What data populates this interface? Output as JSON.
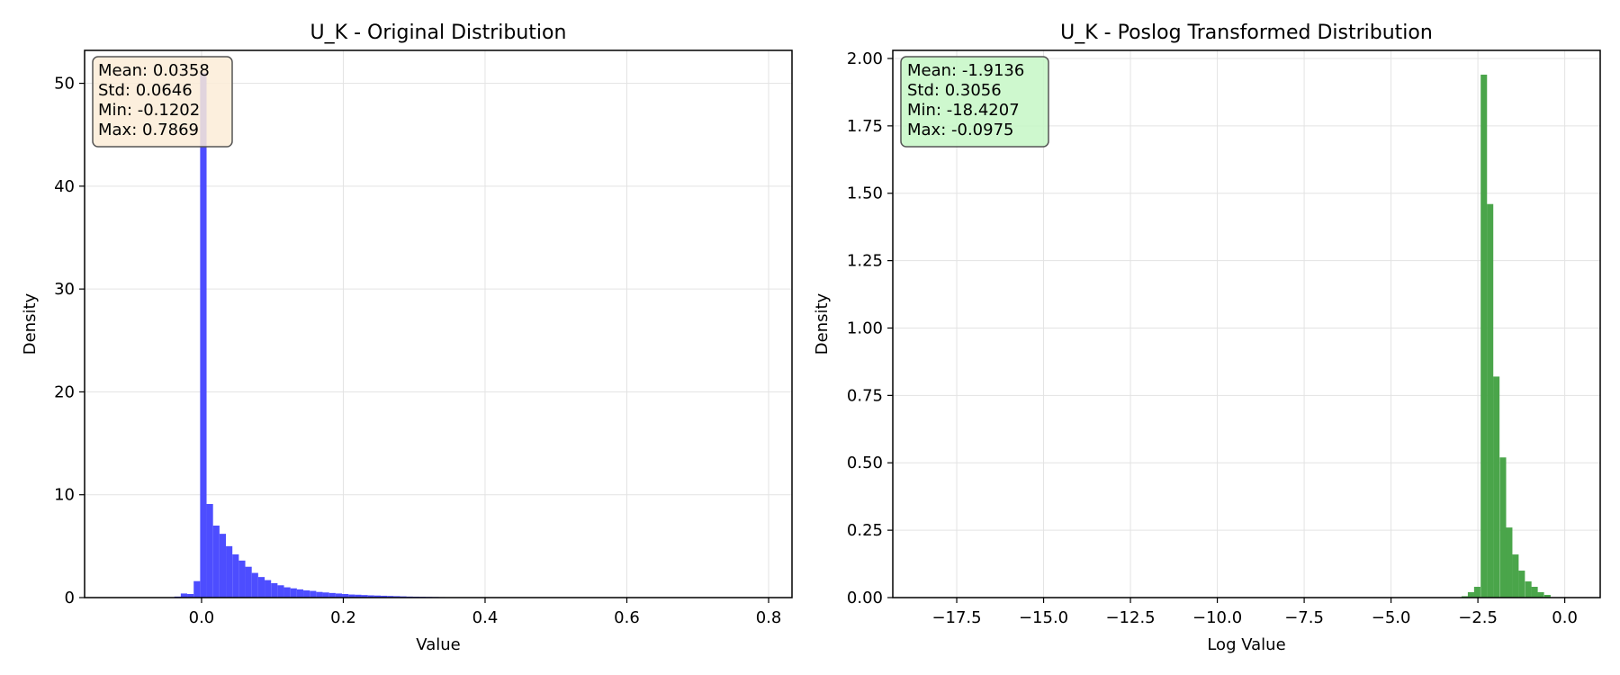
{
  "chart_data": [
    {
      "type": "bar",
      "title": "U_K - Original Distribution",
      "xlabel": "Value",
      "ylabel": "Density",
      "xlim": [
        -0.165,
        0.833
      ],
      "ylim": [
        0,
        53.2
      ],
      "xticks": [
        0.0,
        0.2,
        0.4,
        0.6,
        0.8
      ],
      "xtick_labels": [
        "0.0",
        "0.2",
        "0.4",
        "0.6",
        "0.8"
      ],
      "yticks": [
        0,
        10,
        20,
        30,
        40,
        50
      ],
      "ytick_labels": [
        "0",
        "10",
        "20",
        "30",
        "40",
        "50"
      ],
      "grid": true,
      "bar_color": "#4d4dff",
      "bin_width": 0.00909,
      "bins_x": [
        -0.0384,
        -0.0293,
        -0.0202,
        -0.0111,
        -0.002,
        0.0071,
        0.0162,
        0.0253,
        0.0344,
        0.0435,
        0.0526,
        0.0617,
        0.0708,
        0.0799,
        0.089,
        0.0981,
        0.1072,
        0.1163,
        0.1254,
        0.1345,
        0.1436,
        0.1527,
        0.1618,
        0.1709,
        0.18,
        0.1891,
        0.1982,
        0.2073,
        0.2164,
        0.2255,
        0.2346,
        0.2437,
        0.2528,
        0.2619,
        0.271,
        0.2801,
        0.2892,
        0.2983,
        0.3074,
        0.3165,
        0.3256,
        0.3347
      ],
      "density": [
        0.1,
        0.4,
        0.35,
        1.6,
        51.0,
        9.1,
        7.0,
        6.2,
        5.0,
        4.2,
        3.6,
        3.0,
        2.4,
        2.0,
        1.7,
        1.4,
        1.2,
        1.0,
        0.9,
        0.8,
        0.7,
        0.65,
        0.55,
        0.5,
        0.45,
        0.4,
        0.35,
        0.3,
        0.28,
        0.25,
        0.22,
        0.2,
        0.18,
        0.16,
        0.14,
        0.12,
        0.1,
        0.09,
        0.08,
        0.07,
        0.06,
        0.05
      ],
      "stats": [
        "Mean: 0.0358",
        "Std: 0.0646",
        "Min: -0.1202",
        "Max: 0.7869"
      ],
      "stats_box_color": "#fbecd7"
    },
    {
      "type": "bar",
      "title": "U_K - Poslog Transformed Distribution",
      "xlabel": "Log Value",
      "ylabel": "Density",
      "xlim": [
        -19.34,
        1.02
      ],
      "ylim": [
        0,
        2.03
      ],
      "xticks": [
        -17.5,
        -15.0,
        -12.5,
        -10.0,
        -7.5,
        -5.0,
        -2.5,
        0.0
      ],
      "xtick_labels": [
        "−17.5",
        "−15.0",
        "−12.5",
        "−10.0",
        "−7.5",
        "−5.0",
        "−2.5",
        "0.0"
      ],
      "yticks": [
        0.0,
        0.25,
        0.5,
        0.75,
        1.0,
        1.25,
        1.5,
        1.75,
        2.0
      ],
      "ytick_labels": [
        "0.00",
        "0.25",
        "0.50",
        "0.75",
        "1.00",
        "1.25",
        "1.50",
        "1.75",
        "2.00"
      ],
      "grid": true,
      "bar_color": "#4aa54a",
      "bin_width": 0.183,
      "bins_x": [
        -2.97,
        -2.79,
        -2.61,
        -2.42,
        -2.24,
        -2.06,
        -1.87,
        -1.69,
        -1.51,
        -1.33,
        -1.14,
        -0.96,
        -0.78,
        -0.59
      ],
      "density": [
        0.005,
        0.02,
        0.04,
        1.94,
        1.46,
        0.82,
        0.52,
        0.26,
        0.16,
        0.1,
        0.06,
        0.04,
        0.02,
        0.01
      ],
      "stats": [
        "Mean: -1.9136",
        "Std: 0.3056",
        "Min: -18.4207",
        "Max: -0.0975"
      ],
      "stats_box_color": "#c6f7c6"
    }
  ]
}
